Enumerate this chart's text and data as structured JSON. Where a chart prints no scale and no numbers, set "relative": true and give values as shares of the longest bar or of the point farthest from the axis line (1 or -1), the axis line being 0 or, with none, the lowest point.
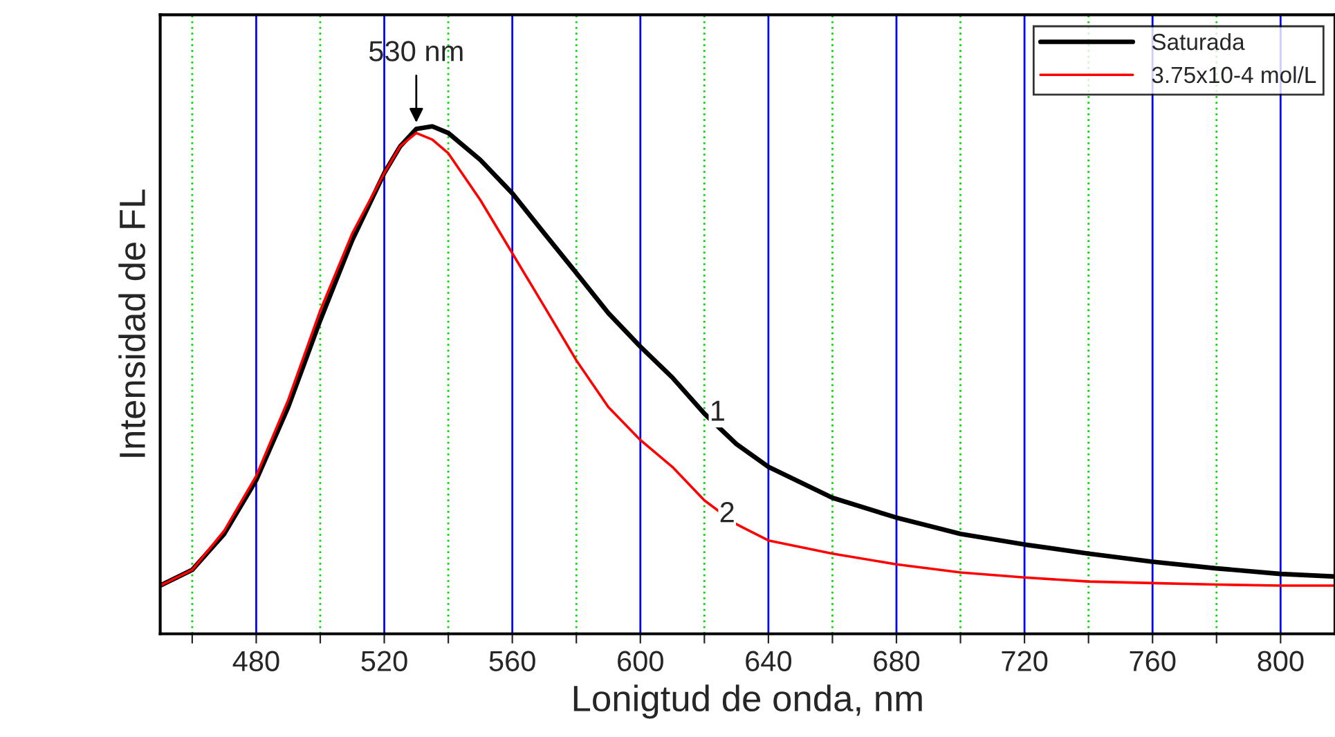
{
  "chart_data": {
    "type": "line",
    "relative": true,
    "xlabel": "Lonigtud de onda, nm",
    "ylabel": "Intensidad de FL",
    "xlim": [
      450,
      817
    ],
    "xticks": [
      {
        "value": 460,
        "label": null
      },
      480,
      {
        "value": 500,
        "label": null
      },
      520,
      {
        "value": 540,
        "label": null
      },
      560,
      {
        "value": 580,
        "label": null
      },
      600,
      {
        "value": 620,
        "label": null
      },
      640,
      {
        "value": 660,
        "label": null
      },
      680,
      {
        "value": 700,
        "label": null
      },
      720,
      {
        "value": 740,
        "label": null
      },
      760,
      {
        "value": 780,
        "label": null
      },
      800
    ],
    "grid": "x",
    "legend": "top right",
    "marker": "none",
    "line_style": "solid",
    "x": [
      450,
      460,
      470,
      480,
      490,
      500,
      510,
      520,
      525,
      530,
      535,
      540,
      550,
      560,
      570,
      580,
      590,
      600,
      610,
      620,
      630,
      640,
      660,
      680,
      700,
      720,
      740,
      760,
      780,
      800,
      817
    ],
    "series": [
      {
        "name": "Saturada",
        "color": "#000000",
        "values": [
          0.095,
          0.126,
          0.197,
          0.303,
          0.447,
          0.618,
          0.776,
          0.908,
          0.961,
          0.995,
          1.0,
          0.987,
          0.934,
          0.868,
          0.789,
          0.711,
          0.632,
          0.566,
          0.505,
          0.434,
          0.374,
          0.329,
          0.268,
          0.229,
          0.197,
          0.176,
          0.158,
          0.142,
          0.129,
          0.118,
          0.113
        ]
      },
      {
        "name": "3.75x10-4 mol/L",
        "color": "#ff0000",
        "values": [
          0.095,
          0.126,
          0.203,
          0.311,
          0.461,
          0.637,
          0.789,
          0.908,
          0.961,
          0.987,
          0.974,
          0.947,
          0.855,
          0.75,
          0.645,
          0.539,
          0.447,
          0.382,
          0.329,
          0.263,
          0.216,
          0.184,
          0.158,
          0.137,
          0.121,
          0.111,
          0.103,
          0.1,
          0.097,
          0.095,
          0.095
        ]
      }
    ],
    "annotations": [
      {
        "text": "530 nm",
        "x": 530,
        "y": 1.0
      },
      {
        "text": "1",
        "x": 612,
        "y": 0.484
      },
      {
        "text": "2",
        "x": 615,
        "y": 0.284
      }
    ]
  }
}
